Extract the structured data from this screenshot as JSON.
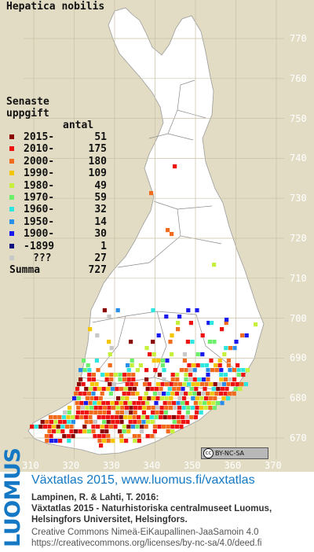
{
  "map": {
    "species": "Hepatica nobilis",
    "y_axis_labels": [
      "770",
      "760",
      "750",
      "740",
      "730",
      "720",
      "710",
      "700",
      "690",
      "680",
      "670"
    ],
    "x_axis_labels": [
      "310",
      "320",
      "330",
      "340",
      "350",
      "360",
      "370"
    ],
    "license_badge": "BY-NC-SA",
    "license_badge_icon": "cc-icon",
    "map_background": "#e2dcc4",
    "land_color": "#ffffff"
  },
  "legend": {
    "title_line1": "Senaste",
    "title_line2": "uppgift",
    "count_header": "antal",
    "rows": [
      {
        "label": "2015-",
        "count": "51",
        "color": "#8b0000"
      },
      {
        "label": "2010-",
        "count": "175",
        "color": "#ee1111"
      },
      {
        "label": "2000-",
        "count": "180",
        "color": "#f26a1b"
      },
      {
        "label": "1990-",
        "count": "109",
        "color": "#f5c600"
      },
      {
        "label": "1980-",
        "count": "49",
        "color": "#c6f03c"
      },
      {
        "label": "1970-",
        "count": "59",
        "color": "#6cf06c"
      },
      {
        "label": "1960-",
        "count": "32",
        "color": "#2ee6e0"
      },
      {
        "label": "1950-",
        "count": "14",
        "color": "#2a8fe8"
      },
      {
        "label": "1900-",
        "count": "30",
        "color": "#1a1aee"
      },
      {
        "label": "-1899",
        "count": "1",
        "color": "#101080"
      },
      {
        "label": "???",
        "count": "27",
        "color": "#c8c8c8"
      }
    ],
    "sum_label": "Summa",
    "sum_count": "727"
  },
  "footer": {
    "logo": "LUOMUS",
    "site": "Växtatlas 2015, www.luomus.fi/vaxtatlas",
    "citation": [
      "Lampinen, R. & Lahti, T. 2016:",
      "Växtatlas 2015 - Naturhistoriska centralmuseet Luomus,",
      "Helsingfors Universitet, Helsingfors."
    ],
    "license": [
      "Creative Commons Nimeä-EiKaupallinen-JaaSamoin 4.0",
      "https://creativecommons.org/licenses/by-nc-sa/4.0/deed.fi"
    ]
  }
}
